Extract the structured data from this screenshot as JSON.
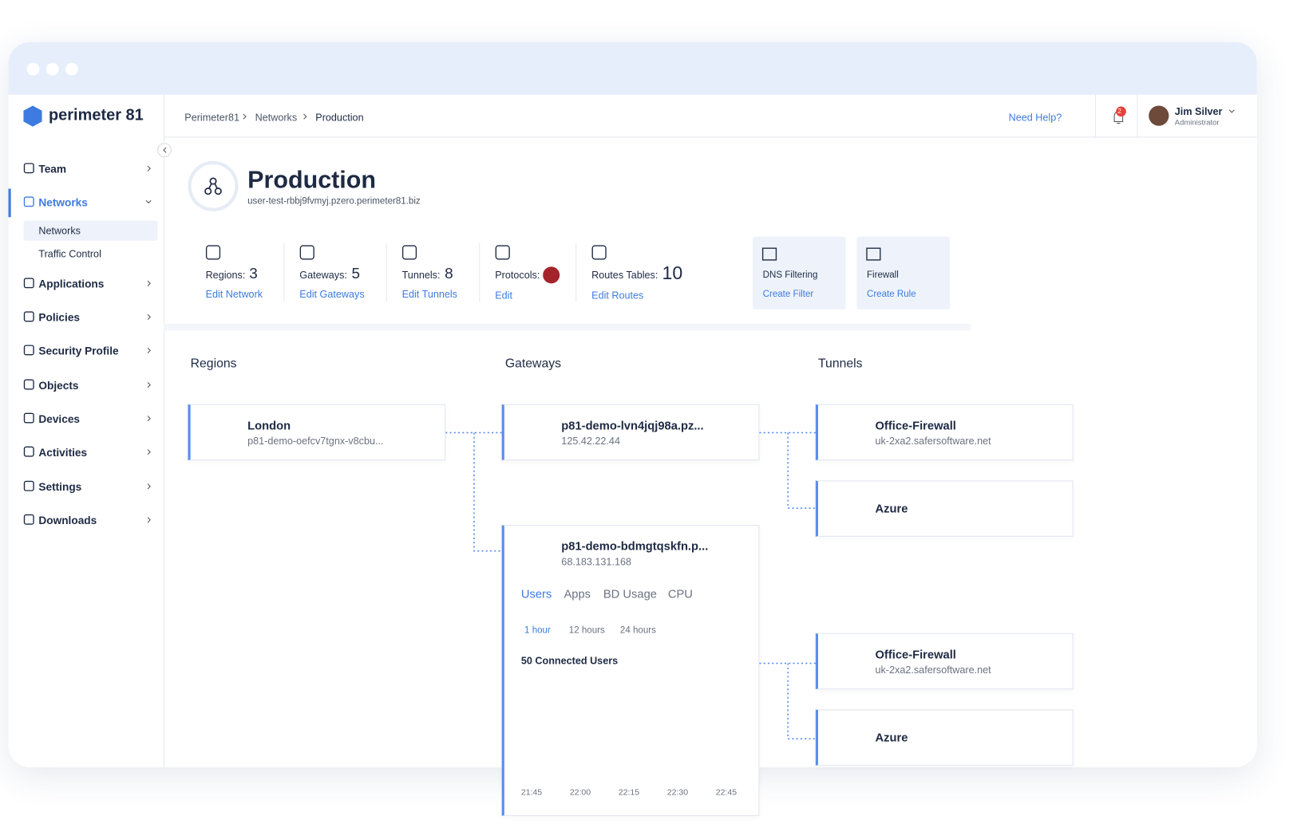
{
  "header": {
    "logo": "perimeter 81",
    "breadcrumb": [
      "Perimeter81",
      "Networks",
      "Production"
    ],
    "help": "Need Help?",
    "notifications": "2",
    "user": {
      "name": "Jim Silver",
      "role": "Administrator"
    }
  },
  "sidebar": {
    "items": [
      "Team",
      "Networks",
      "Applications",
      "Policies",
      "Security Profile",
      "Objects",
      "Devices",
      "Activities",
      "Settings",
      "Downloads"
    ],
    "subitems": [
      "Networks",
      "Traffic Control"
    ]
  },
  "page": {
    "title": "Production",
    "subtitle": "user-test-rbbj9fvmyj.pzero.perimeter81.biz"
  },
  "stats": [
    {
      "label": "Regions:",
      "value": "3",
      "link": "Edit Network"
    },
    {
      "label": "Gateways:",
      "value": "5",
      "link": "Edit Gateways"
    },
    {
      "label": "Tunnels:",
      "value": "8",
      "link": "Edit Tunnels"
    },
    {
      "label": "Protocols:",
      "link": "Edit"
    },
    {
      "label": "Routes Tables:",
      "value": "10",
      "link": "Edit Routes"
    }
  ],
  "features": [
    {
      "label": "DNS Filtering",
      "link": "Create Filter"
    },
    {
      "label": "Firewall",
      "link": "Create Rule"
    }
  ],
  "columns": [
    "Regions",
    "Gateways",
    "Tunnels"
  ],
  "regions": [
    {
      "title": "London",
      "subtitle": "p81-demo-oefcv7tgnx-v8cbu..."
    }
  ],
  "gateways": [
    {
      "title": "p81-demo-lvn4jqj98a.pz...",
      "subtitle": "125.42.22.44"
    },
    {
      "title": "p81-demo-bdmgtqskfn.p...",
      "subtitle": "68.183.131.168"
    }
  ],
  "tunnels": [
    {
      "title": "Office-Firewall",
      "subtitle": "uk-2xa2.safersoftware.net"
    },
    {
      "title": "Azure"
    },
    {
      "title": "Office-Firewall",
      "subtitle": "uk-2xa2.safersoftware.net"
    },
    {
      "title": "Azure"
    }
  ],
  "details": {
    "tabs": [
      "Users",
      "Apps",
      "BD Usage",
      "CPU"
    ],
    "ranges": [
      "1 hour",
      "12 hours",
      "24 hours"
    ],
    "metric": "50 Connected Users",
    "times": [
      "21:45",
      "22:00",
      "22:15",
      "22:30",
      "22:45"
    ]
  }
}
